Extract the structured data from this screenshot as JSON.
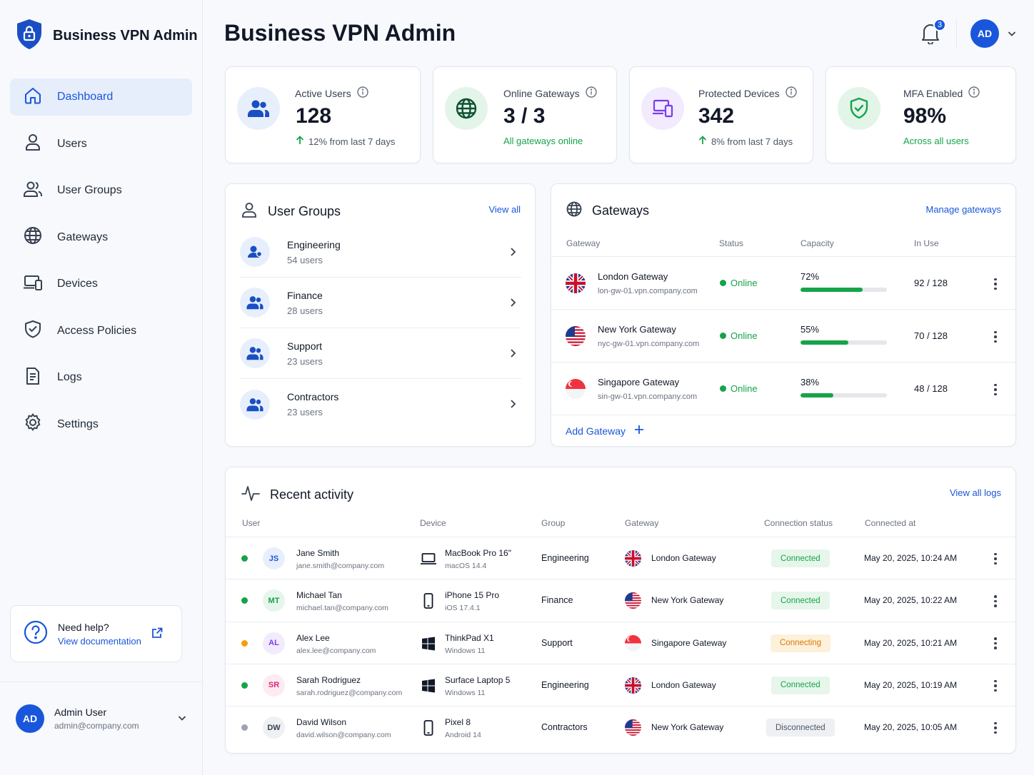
{
  "app": {
    "brand": "Business VPN Admin",
    "page_title": "Business VPN Admin"
  },
  "nav": [
    {
      "label": "Dashboard",
      "icon": "home-icon",
      "active": true
    },
    {
      "label": "Users",
      "icon": "user-icon"
    },
    {
      "label": "User Groups",
      "icon": "users-icon"
    },
    {
      "label": "Gateways",
      "icon": "globe-icon"
    },
    {
      "label": "Devices",
      "icon": "devices-icon"
    },
    {
      "label": "Access Policies",
      "icon": "shield-icon"
    },
    {
      "label": "Logs",
      "icon": "document-icon"
    },
    {
      "label": "Settings",
      "icon": "gear-icon"
    }
  ],
  "help": {
    "title": "Need help?",
    "link": "View documentation"
  },
  "admin": {
    "initials": "AD",
    "name": "Admin User",
    "email": "admin@company.com"
  },
  "header": {
    "notification_count": "3",
    "avatar": "AD"
  },
  "stats": [
    {
      "label": "Active Users",
      "value": "128",
      "sub": "12% from last 7 days",
      "trend": "up",
      "icon": "users-icon",
      "color": "#1a56db"
    },
    {
      "label": "Online Gateways",
      "value": "3 / 3",
      "sub": "All gateways online",
      "icon": "globe-icon",
      "color": "#16a34a"
    },
    {
      "label": "Protected Devices",
      "value": "342",
      "sub": "8% from last 7 days",
      "trend": "up",
      "icon": "devices-icon",
      "color": "#7c3aed"
    },
    {
      "label": "MFA Enabled",
      "value": "98%",
      "sub": "Across all users",
      "icon": "shield-check-icon",
      "color": "#16a34a"
    }
  ],
  "user_groups": {
    "title": "User Groups",
    "link": "View all",
    "items": [
      {
        "name": "Engineering",
        "count": "54 users"
      },
      {
        "name": "Finance",
        "count": "28 users"
      },
      {
        "name": "Support",
        "count": "23 users"
      },
      {
        "name": "Contractors",
        "count": "23 users"
      }
    ]
  },
  "gateways": {
    "title": "Gateways",
    "link": "Manage gateways",
    "columns": [
      "Gateway",
      "Status",
      "Capacity",
      "In Use"
    ],
    "rows": [
      {
        "name": "London Gateway",
        "host": "lon-gw-01.vpn.company.com",
        "status": "Online",
        "capacity": "72%",
        "capacity_value": 0.72,
        "in_use": "92 / 128",
        "flag": "uk"
      },
      {
        "name": "New York Gateway",
        "host": "nyc-gw-01.vpn.company.com",
        "status": "Online",
        "capacity": "55%",
        "capacity_value": 0.55,
        "in_use": "70 / 128",
        "flag": "us"
      },
      {
        "name": "Singapore Gateway",
        "host": "sin-gw-01.vpn.company.com",
        "status": "Online",
        "capacity": "38%",
        "capacity_value": 0.38,
        "in_use": "48 / 128",
        "flag": "sg"
      }
    ],
    "add_label": "Add Gateway"
  },
  "activity": {
    "title": "Recent activity",
    "link": "View all logs",
    "columns": [
      "User",
      "Device",
      "Group",
      "Gateway",
      "Connection status",
      "Connected at"
    ],
    "rows": [
      {
        "initials": "JS",
        "name": "Jane Smith",
        "email": "jane.smith@company.com",
        "device": "MacBook Pro 16\"",
        "os": "macOS 14.4",
        "device_type": "laptop",
        "group": "Engineering",
        "gateway": "London Gateway",
        "flag": "uk",
        "status": "Connected",
        "time": "May 20, 2025, 10:24 AM",
        "dot_color": "#16a34a",
        "avatar_bg": "#e8effc",
        "avatar_fg": "#1a56db"
      },
      {
        "initials": "MT",
        "name": "Michael Tan",
        "email": "michael.tan@company.com",
        "device": "iPhone 15 Pro",
        "os": "iOS 17.4.1",
        "device_type": "phone",
        "group": "Finance",
        "gateway": "New York Gateway",
        "flag": "us",
        "status": "Connected",
        "time": "May 20, 2025, 10:22 AM",
        "dot_color": "#16a34a",
        "avatar_bg": "#e6f6ea",
        "avatar_fg": "#16a34a"
      },
      {
        "initials": "AL",
        "name": "Alex Lee",
        "email": "alex.lee@company.com",
        "device": "ThinkPad X1",
        "os": "Windows 11",
        "device_type": "windows",
        "group": "Support",
        "gateway": "Singapore Gateway",
        "flag": "sg",
        "status": "Connecting",
        "time": "May 20, 2025, 10:21 AM",
        "dot_color": "#f59e0b",
        "avatar_bg": "#f1ebfd",
        "avatar_fg": "#7c3aed"
      },
      {
        "initials": "SR",
        "name": "Sarah Rodriguez",
        "email": "sarah.rodriguez@company.com",
        "device": "Surface Laptop 5",
        "os": "Windows 11",
        "device_type": "windows",
        "group": "Engineering",
        "gateway": "London Gateway",
        "flag": "uk",
        "status": "Connected",
        "time": "May 20, 2025, 10:19 AM",
        "dot_color": "#16a34a",
        "avatar_bg": "#fdebf2",
        "avatar_fg": "#db2777"
      },
      {
        "initials": "DW",
        "name": "David Wilson",
        "email": "david.wilson@company.com",
        "device": "Pixel 8",
        "os": "Android 14",
        "device_type": "phone",
        "group": "Contractors",
        "gateway": "New York Gateway",
        "flag": "us",
        "status": "Disconnected",
        "time": "May 20, 2025, 10:05 AM",
        "dot_color": "#9ca3af",
        "avatar_bg": "#eef0f3",
        "avatar_fg": "#374151"
      }
    ]
  }
}
